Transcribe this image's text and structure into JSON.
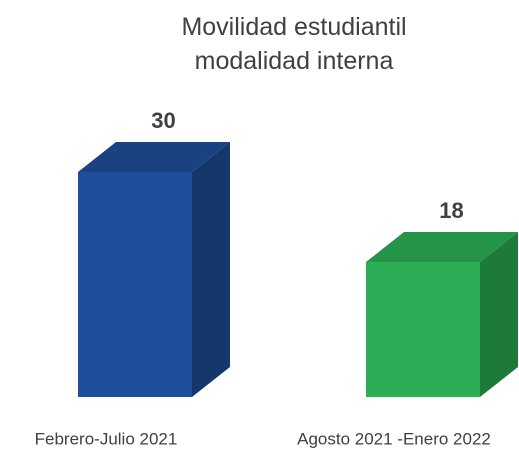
{
  "chart_data": {
    "type": "bar3d",
    "title": "Movilidad estudiantil modalidad interna",
    "categories": [
      "Febrero-Julio 2021",
      "Agosto 2021 -Enero 2022"
    ],
    "values": [
      30,
      18
    ],
    "colors": [
      "#1f4e9a",
      "#2bae55"
    ]
  }
}
